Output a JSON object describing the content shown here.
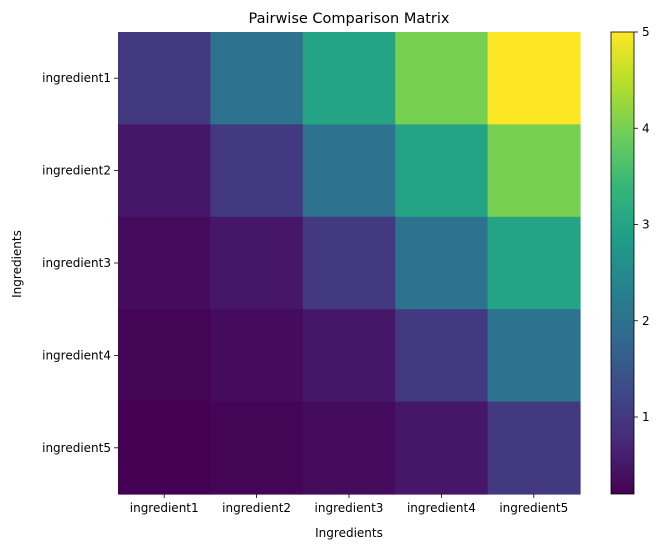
{
  "chart_data": {
    "type": "heatmap",
    "title": "Pairwise Comparison Matrix",
    "xlabel": "Ingredients",
    "ylabel": "Ingredients",
    "x_categories": [
      "ingredient1",
      "ingredient2",
      "ingredient3",
      "ingredient4",
      "ingredient5"
    ],
    "y_categories": [
      "ingredient1",
      "ingredient2",
      "ingredient3",
      "ingredient4",
      "ingredient5"
    ],
    "values": [
      [
        1,
        2,
        3,
        4,
        5
      ],
      [
        0.5,
        1,
        2,
        3,
        4
      ],
      [
        0.3333,
        0.5,
        1,
        2,
        3
      ],
      [
        0.25,
        0.3333,
        0.5,
        1,
        2
      ],
      [
        0.2,
        0.25,
        0.3333,
        0.5,
        1
      ]
    ],
    "colormap": "viridis",
    "vmin": 0.2,
    "vmax": 5,
    "colorbar_ticks": [
      1,
      2,
      3,
      4,
      5
    ],
    "colorbar_tick_labels": [
      "1",
      "2",
      "3",
      "4",
      "5"
    ]
  }
}
